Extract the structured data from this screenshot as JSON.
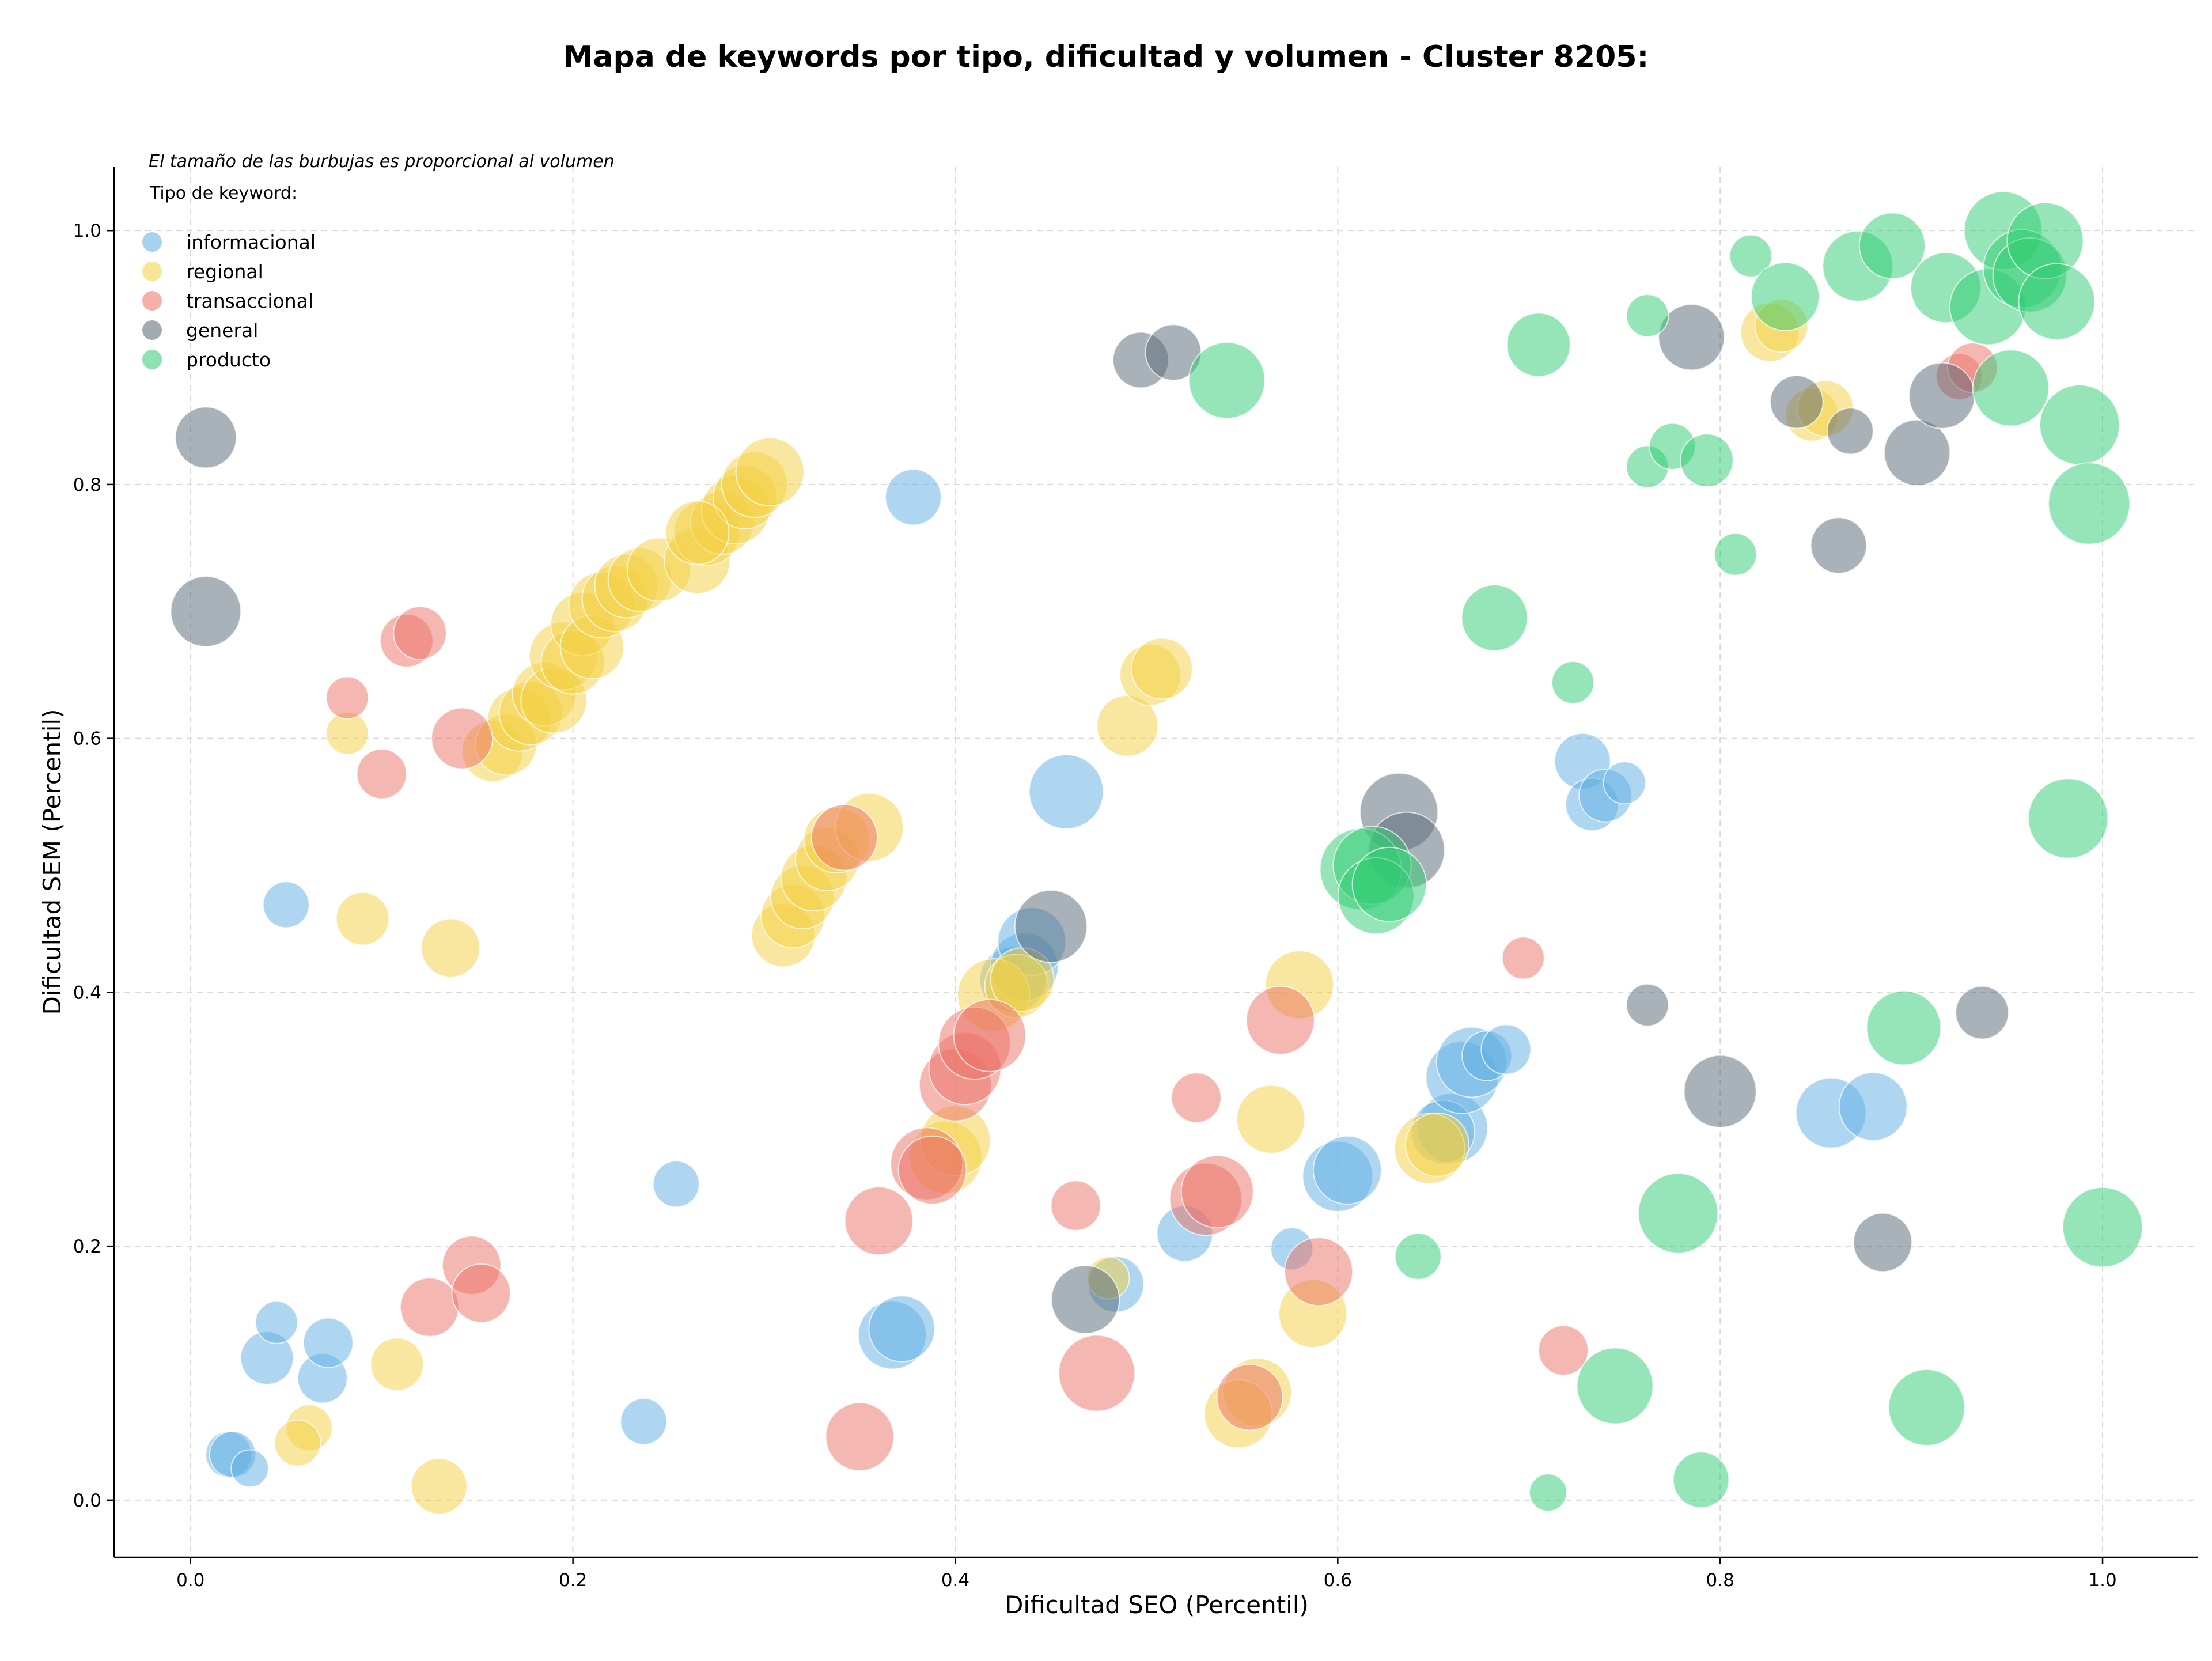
{
  "chart_data": {
    "type": "scatter",
    "title": "Mapa de keywords por tipo, dificultad y volumen - Cluster 8205:",
    "xlabel": "Dificultad SEO (Percentil)",
    "ylabel": "Dificultad SEM (Percentil)",
    "note": "El tamaño de las burbujas es proporcional al volumen",
    "legend_title": "Tipo de keyword:",
    "legend_position": "top-left",
    "grid": true,
    "xlim": [
      -0.04,
      1.05
    ],
    "ylim": [
      -0.045,
      1.05
    ],
    "xticks": [
      "0.0",
      "0.2",
      "0.4",
      "0.6",
      "0.8",
      "1.0"
    ],
    "yticks": [
      "0.0",
      "0.2",
      "0.4",
      "0.6",
      "0.8",
      "1.0"
    ],
    "xtick_values": [
      0,
      0.2,
      0.4,
      0.6,
      0.8,
      1.0
    ],
    "ytick_values": [
      0,
      0.2,
      0.4,
      0.6,
      0.8,
      1.0
    ],
    "series": [
      {
        "name": "informacional",
        "color": "#5DADE2",
        "points": [
          [
            0.02,
            0.036,
            4
          ],
          [
            0.022,
            0.036,
            4
          ],
          [
            0.031,
            0.025,
            2
          ],
          [
            0.04,
            0.112,
            6
          ],
          [
            0.045,
            0.14,
            3
          ],
          [
            0.069,
            0.096,
            5
          ],
          [
            0.072,
            0.124,
            5
          ],
          [
            0.05,
            0.469,
            4
          ],
          [
            0.254,
            0.249,
            4
          ],
          [
            0.237,
            0.062,
            4
          ],
          [
            0.378,
            0.79,
            7
          ],
          [
            0.367,
            0.13,
            12
          ],
          [
            0.372,
            0.135,
            11
          ],
          [
            0.458,
            0.558,
            15
          ],
          [
            0.43,
            0.41,
            11
          ],
          [
            0.436,
            0.42,
            12
          ],
          [
            0.44,
            0.44,
            12
          ],
          [
            0.484,
            0.17,
            7
          ],
          [
            0.52,
            0.21,
            7
          ],
          [
            0.576,
            0.198,
            3
          ],
          [
            0.6,
            0.255,
            13
          ],
          [
            0.605,
            0.26,
            12
          ],
          [
            0.66,
            0.293,
            13
          ],
          [
            0.655,
            0.29,
            10
          ],
          [
            0.665,
            0.333,
            14
          ],
          [
            0.67,
            0.345,
            13
          ],
          [
            0.678,
            0.35,
            5
          ],
          [
            0.688,
            0.355,
            5
          ],
          [
            0.728,
            0.582,
            7
          ],
          [
            0.733,
            0.548,
            6
          ],
          [
            0.74,
            0.555,
            6
          ],
          [
            0.75,
            0.565,
            3
          ],
          [
            0.858,
            0.305,
            13
          ],
          [
            0.88,
            0.31,
            12
          ]
        ]
      },
      {
        "name": "regional",
        "color": "#F4D03F",
        "points": [
          [
            0.082,
            0.604,
            3
          ],
          [
            0.09,
            0.458,
            6
          ],
          [
            0.136,
            0.435,
            8
          ],
          [
            0.108,
            0.107,
            6
          ],
          [
            0.062,
            0.057,
            4
          ],
          [
            0.056,
            0.045,
            4
          ],
          [
            0.13,
            0.011,
            7
          ],
          [
            0.158,
            0.59,
            9
          ],
          [
            0.165,
            0.595,
            9
          ],
          [
            0.172,
            0.615,
            10
          ],
          [
            0.178,
            0.62,
            10
          ],
          [
            0.185,
            0.635,
            10
          ],
          [
            0.19,
            0.63,
            11
          ],
          [
            0.195,
            0.665,
            12
          ],
          [
            0.2,
            0.66,
            10
          ],
          [
            0.205,
            0.69,
            10
          ],
          [
            0.21,
            0.672,
            10
          ],
          [
            0.215,
            0.705,
            11
          ],
          [
            0.222,
            0.71,
            11
          ],
          [
            0.228,
            0.72,
            10
          ],
          [
            0.235,
            0.725,
            10
          ],
          [
            0.245,
            0.733,
            10
          ],
          [
            0.265,
            0.74,
            11
          ],
          [
            0.27,
            0.762,
            11
          ],
          [
            0.278,
            0.77,
            10
          ],
          [
            0.285,
            0.78,
            12
          ],
          [
            0.29,
            0.79,
            10
          ],
          [
            0.295,
            0.8,
            11
          ],
          [
            0.303,
            0.81,
            12
          ],
          [
            0.265,
            0.762,
            10
          ],
          [
            0.31,
            0.445,
            10
          ],
          [
            0.315,
            0.46,
            10
          ],
          [
            0.32,
            0.475,
            10
          ],
          [
            0.326,
            0.49,
            11
          ],
          [
            0.333,
            0.505,
            10
          ],
          [
            0.338,
            0.52,
            11
          ],
          [
            0.355,
            0.53,
            12
          ],
          [
            0.49,
            0.61,
            9
          ],
          [
            0.502,
            0.65,
            9
          ],
          [
            0.508,
            0.655,
            9
          ],
          [
            0.58,
            0.406,
            12
          ],
          [
            0.565,
            0.3,
            12
          ],
          [
            0.648,
            0.277,
            13
          ],
          [
            0.652,
            0.28,
            10
          ],
          [
            0.395,
            0.27,
            14
          ],
          [
            0.4,
            0.283,
            13
          ],
          [
            0.42,
            0.398,
            14
          ],
          [
            0.432,
            0.405,
            10
          ],
          [
            0.435,
            0.41,
            10
          ],
          [
            0.558,
            0.085,
            12
          ],
          [
            0.548,
            0.068,
            12
          ],
          [
            0.587,
            0.147,
            12
          ],
          [
            0.48,
            0.175,
            3
          ],
          [
            0.826,
            0.92,
            8
          ],
          [
            0.832,
            0.925,
            6
          ],
          [
            0.848,
            0.855,
            6
          ],
          [
            0.855,
            0.86,
            7
          ]
        ]
      },
      {
        "name": "transaccional",
        "color": "#EC7063",
        "points": [
          [
            0.082,
            0.632,
            3
          ],
          [
            0.1,
            0.572,
            5
          ],
          [
            0.113,
            0.677,
            6
          ],
          [
            0.12,
            0.683,
            6
          ],
          [
            0.142,
            0.6,
            9
          ],
          [
            0.125,
            0.152,
            8
          ],
          [
            0.147,
            0.185,
            8
          ],
          [
            0.152,
            0.163,
            8
          ],
          [
            0.342,
            0.522,
            11
          ],
          [
            0.36,
            0.22,
            12
          ],
          [
            0.35,
            0.05,
            12
          ],
          [
            0.385,
            0.265,
            14
          ],
          [
            0.388,
            0.26,
            12
          ],
          [
            0.4,
            0.327,
            14
          ],
          [
            0.405,
            0.34,
            14
          ],
          [
            0.41,
            0.36,
            14
          ],
          [
            0.418,
            0.366,
            14
          ],
          [
            0.463,
            0.232,
            5
          ],
          [
            0.474,
            0.1,
            16
          ],
          [
            0.526,
            0.317,
            5
          ],
          [
            0.531,
            0.237,
            14
          ],
          [
            0.537,
            0.243,
            14
          ],
          [
            0.554,
            0.081,
            11
          ],
          [
            0.57,
            0.378,
            12
          ],
          [
            0.59,
            0.18,
            12
          ],
          [
            0.697,
            0.427,
            3
          ],
          [
            0.718,
            0.118,
            5
          ],
          [
            0.925,
            0.885,
            4
          ],
          [
            0.932,
            0.892,
            5
          ]
        ]
      },
      {
        "name": "general",
        "color": "#566573",
        "points": [
          [
            0.008,
            0.837,
            9
          ],
          [
            0.008,
            0.7,
            13
          ],
          [
            0.45,
            0.452,
            14
          ],
          [
            0.468,
            0.158,
            12
          ],
          [
            0.497,
            0.898,
            7
          ],
          [
            0.514,
            0.904,
            7
          ],
          [
            0.632,
            0.542,
            17
          ],
          [
            0.636,
            0.512,
            16
          ],
          [
            0.762,
            0.39,
            3
          ],
          [
            0.785,
            0.916,
            11
          ],
          [
            0.8,
            0.322,
            14
          ],
          [
            0.84,
            0.865,
            6
          ],
          [
            0.862,
            0.752,
            7
          ],
          [
            0.868,
            0.842,
            4
          ],
          [
            0.885,
            0.203,
            8
          ],
          [
            0.903,
            0.825,
            11
          ],
          [
            0.916,
            0.87,
            11
          ],
          [
            0.937,
            0.384,
            6
          ]
        ]
      },
      {
        "name": "producto",
        "color": "#2ECC71",
        "points": [
          [
            0.542,
            0.882,
            16
          ],
          [
            0.612,
            0.497,
            19
          ],
          [
            0.618,
            0.5,
            17
          ],
          [
            0.62,
            0.476,
            16
          ],
          [
            0.627,
            0.485,
            15
          ],
          [
            0.642,
            0.192,
            4
          ],
          [
            0.682,
            0.695,
            11
          ],
          [
            0.705,
            0.91,
            10
          ],
          [
            0.71,
            0.006,
            2
          ],
          [
            0.723,
            0.644,
            3
          ],
          [
            0.745,
            0.09,
            16
          ],
          [
            0.762,
            0.814,
            3
          ],
          [
            0.762,
            0.933,
            3
          ],
          [
            0.775,
            0.83,
            4
          ],
          [
            0.778,
            0.226,
            18
          ],
          [
            0.79,
            0.016,
            7
          ],
          [
            0.793,
            0.819,
            6
          ],
          [
            0.808,
            0.745,
            3
          ],
          [
            0.816,
            0.98,
            3
          ],
          [
            0.834,
            0.948,
            12
          ],
          [
            0.872,
            0.972,
            13
          ],
          [
            0.89,
            0.988,
            11
          ],
          [
            0.896,
            0.372,
            15
          ],
          [
            0.908,
            0.073,
            16
          ],
          [
            0.918,
            0.955,
            13
          ],
          [
            0.94,
            0.94,
            16
          ],
          [
            0.948,
            1.0,
            17
          ],
          [
            0.952,
            0.876,
            16
          ],
          [
            0.958,
            0.97,
            17
          ],
          [
            0.962,
            0.965,
            15
          ],
          [
            0.97,
            0.992,
            16
          ],
          [
            0.976,
            0.944,
            16
          ],
          [
            0.982,
            0.537,
            18
          ],
          [
            0.988,
            0.847,
            18
          ],
          [
            0.993,
            0.785,
            19
          ],
          [
            1.0,
            0.215,
            18
          ]
        ]
      }
    ]
  }
}
